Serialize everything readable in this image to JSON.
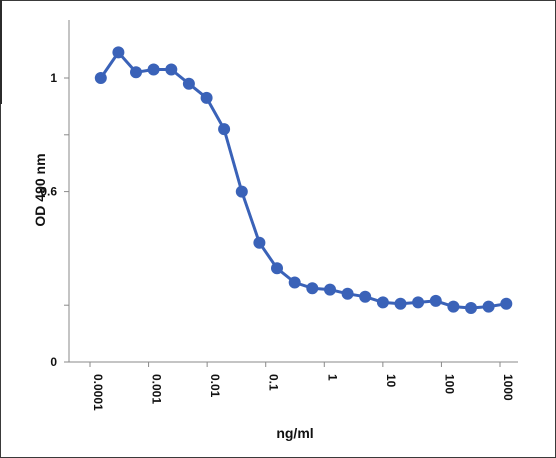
{
  "chart_data": {
    "type": "line",
    "title": "",
    "xlabel": "ng/ml",
    "ylabel": "OD 490 nm",
    "x_scale": "log",
    "xlim": [
      0.0001,
      1000
    ],
    "ylim": [
      0,
      1.1
    ],
    "x_ticks": [
      {
        "value": 0.0001,
        "label": "0.0001"
      },
      {
        "value": 0.001,
        "label": "0.001"
      },
      {
        "value": 0.01,
        "label": "0.01"
      },
      {
        "value": 0.1,
        "label": "0.1"
      },
      {
        "value": 1,
        "label": "1"
      },
      {
        "value": 10,
        "label": "10"
      },
      {
        "value": 100,
        "label": "100"
      },
      {
        "value": 1000,
        "label": "1000"
      }
    ],
    "y_ticks": [
      {
        "value": 0,
        "label": "0"
      },
      {
        "value": 0.2,
        "label": ""
      },
      {
        "value": 0.6,
        "label": "0.6"
      },
      {
        "value": 0.8,
        "label": ""
      },
      {
        "value": 1.0,
        "label": "1"
      }
    ],
    "grid": false,
    "legend": "none",
    "color": "#3a62b8",
    "series": [
      {
        "x": [
          0.000153,
          0.000305,
          0.00061,
          0.00122,
          0.00244,
          0.00488,
          0.00977,
          0.0195,
          0.0391,
          0.0781,
          0.156,
          0.3125,
          0.625,
          1.25,
          2.5,
          5,
          10,
          20,
          40,
          80,
          160,
          320,
          640,
          1280
        ],
        "y": [
          1.0,
          1.09,
          1.02,
          1.03,
          1.03,
          0.98,
          0.93,
          0.82,
          0.6,
          0.42,
          0.33,
          0.28,
          0.26,
          0.255,
          0.24,
          0.23,
          0.21,
          0.205,
          0.21,
          0.215,
          0.195,
          0.19,
          0.195,
          0.205
        ]
      }
    ]
  }
}
